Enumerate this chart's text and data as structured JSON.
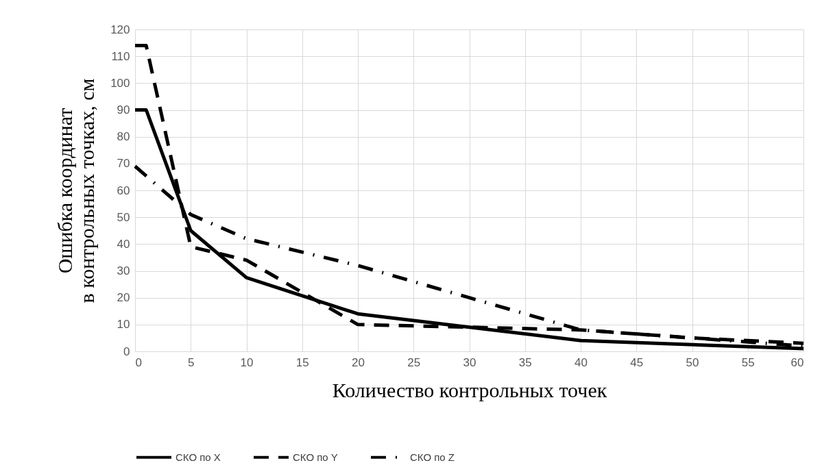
{
  "chart_data": {
    "type": "line",
    "xlabel": "Количество контрольных точек",
    "ylabel": "Ошибка координат\nв контрольных точках, см",
    "xlim": [
      0,
      60
    ],
    "xticks": [
      0,
      5,
      10,
      15,
      20,
      25,
      30,
      35,
      40,
      45,
      50,
      55,
      60
    ],
    "ylim": [
      0,
      120
    ],
    "yticks": [
      0,
      10,
      20,
      30,
      40,
      50,
      60,
      70,
      80,
      90,
      100,
      110,
      120
    ],
    "grid": true,
    "legend": "bottom",
    "marker": "none",
    "series": [
      {
        "name": "СКО по X",
        "color": "#000000",
        "line_style": "solid",
        "x": [
          0,
          1,
          5,
          10,
          20,
          30,
          40,
          60
        ],
        "values": [
          90,
          90,
          45,
          27.5,
          14,
          9,
          4,
          1
        ]
      },
      {
        "name": "СКО по Y",
        "color": "#000000",
        "line_style": "dashed",
        "x": [
          0,
          1,
          5,
          10,
          20,
          30,
          40,
          50,
          60
        ],
        "values": [
          114,
          114,
          39,
          34,
          10,
          9,
          8,
          5,
          3
        ]
      },
      {
        "name": "СКО по Z",
        "color": "#000000",
        "line_style": "dashdot",
        "x": [
          0,
          5,
          10,
          20,
          30,
          40,
          50,
          60
        ],
        "values": [
          69,
          51,
          42,
          32,
          20,
          8,
          5,
          2
        ]
      }
    ]
  }
}
